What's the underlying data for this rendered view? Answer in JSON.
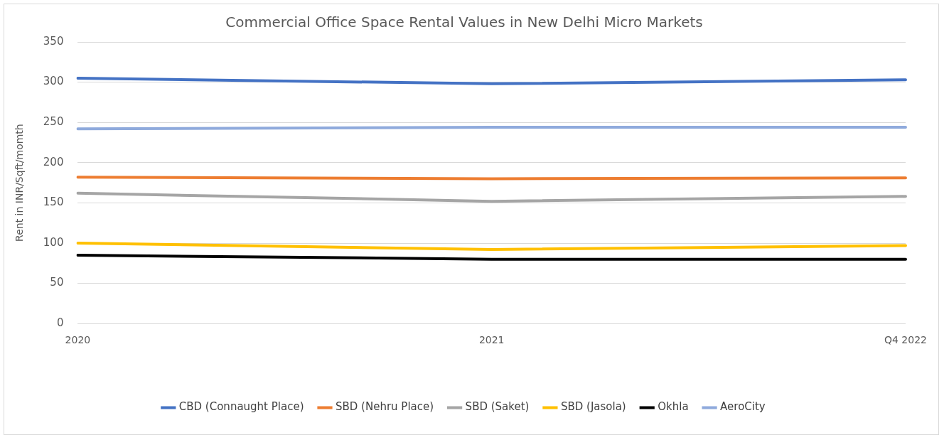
{
  "chart_data": {
    "type": "line",
    "title": "Commercial Office Space Rental Values in New Delhi Micro Markets",
    "ylabel": "Rent in INR/Sqft/momth",
    "categories": [
      "2020",
      "2021",
      "Q4 2022"
    ],
    "series": [
      {
        "name": "CBD (Connaught Place)",
        "color": "#4472c4",
        "values": [
          305,
          298,
          303
        ]
      },
      {
        "name": "SBD (Nehru Place)",
        "color": "#ed7d31",
        "values": [
          182,
          180,
          181
        ]
      },
      {
        "name": "SBD (Saket)",
        "color": "#a5a5a5",
        "values": [
          162,
          152,
          158
        ]
      },
      {
        "name": "SBD (Jasola)",
        "color": "#ffc000",
        "values": [
          100,
          92,
          97
        ]
      },
      {
        "name": "Okhla",
        "color": "#000000",
        "values": [
          85,
          80,
          80
        ]
      },
      {
        "name": "AeroCity",
        "color": "#8faadc",
        "values": [
          242,
          244,
          244
        ]
      }
    ],
    "ylim": [
      0,
      350
    ],
    "yticks": [
      0,
      50,
      100,
      150,
      200,
      250,
      300,
      350
    ],
    "grid": "y",
    "legend": "bottom",
    "marker": "none",
    "line_style": "solid"
  }
}
